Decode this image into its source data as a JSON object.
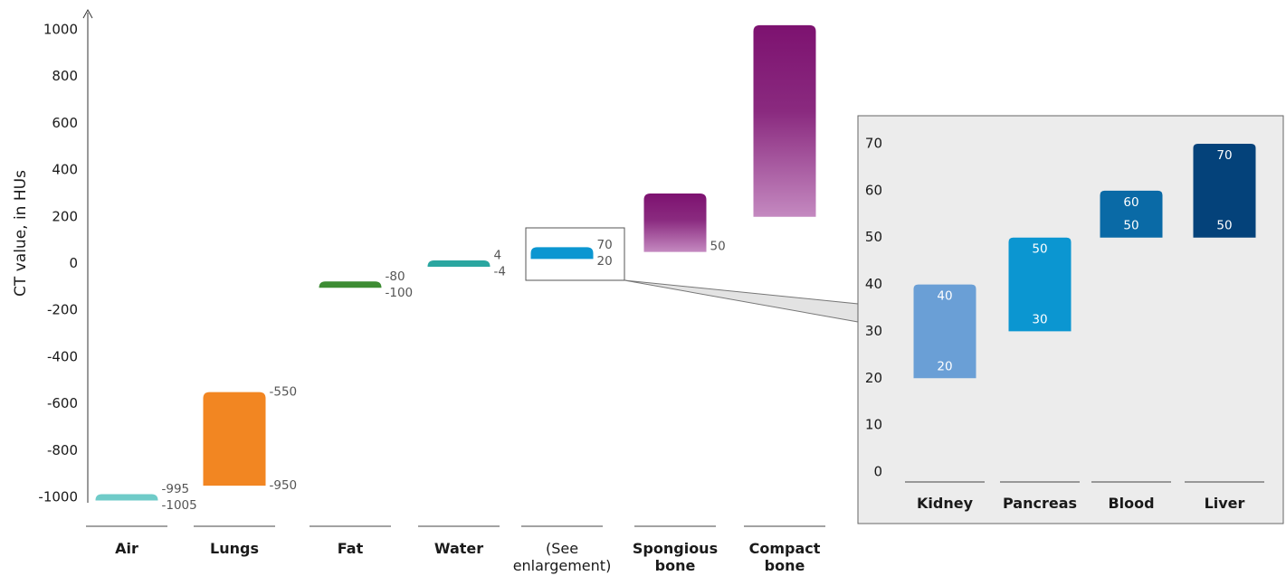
{
  "chart_data": [
    {
      "type": "bar",
      "title": "",
      "ylabel": "CT value, in HUs",
      "xlabel": "",
      "ylim": [
        -1000,
        1000
      ],
      "yticks": [
        1000,
        800,
        600,
        400,
        200,
        0,
        -200,
        -400,
        -600,
        -800,
        -1000
      ],
      "ytick_labels": [
        "1000",
        "800",
        "600",
        "400",
        "200",
        "0",
        "-200",
        "-400",
        "-600",
        "-800",
        "-1000"
      ],
      "grid": false,
      "bars": [
        {
          "category": [
            "Air"
          ],
          "low": -1005,
          "high": -995,
          "labels": [
            "-995",
            "-1005"
          ],
          "color": "#6fcbc8"
        },
        {
          "category": [
            "Lungs"
          ],
          "low": -950,
          "high": -550,
          "labels": [
            "-550",
            "-950"
          ],
          "color": "#f28622"
        },
        {
          "category": [
            "Fat"
          ],
          "low": -100,
          "high": -80,
          "labels": [
            "-80",
            "-100"
          ],
          "color": "#3d8c33"
        },
        {
          "category": [
            "Water"
          ],
          "low": -4,
          "high": 4,
          "labels": [
            "4",
            "-4"
          ],
          "color": "#2aa6a0"
        },
        {
          "category": [
            "(See",
            "enlargement)"
          ],
          "low": 20,
          "high": 70,
          "labels": [
            "70",
            "20"
          ],
          "color": "#0b96d1",
          "light": true
        },
        {
          "category": [
            "Spongious",
            "bone"
          ],
          "low": 50,
          "high": 300,
          "labels": [
            "50"
          ],
          "color_top": "#7d1270",
          "color_bottom": "#c489c0"
        },
        {
          "category": [
            "Compact",
            "bone"
          ],
          "low": 200,
          "high": 1020,
          "labels": [],
          "color_top": "#7d1270",
          "color_bottom": "#c489c0"
        }
      ]
    },
    {
      "type": "bar",
      "title": "",
      "ylim": [
        0,
        70
      ],
      "yticks": [
        70,
        60,
        50,
        40,
        30,
        20,
        10,
        0
      ],
      "ytick_labels": [
        "70",
        "60",
        "50",
        "40",
        "30",
        "20",
        "10",
        "0"
      ],
      "grid": false,
      "bars": [
        {
          "category": "Kidney",
          "low": 20,
          "high": 40,
          "labels": [
            "40",
            "20"
          ],
          "color": "#6a9fd6"
        },
        {
          "category": "Pancreas",
          "low": 30,
          "high": 50,
          "labels": [
            "50",
            "30"
          ],
          "color": "#0b96d1"
        },
        {
          "category": "Blood",
          "low": 50,
          "high": 60,
          "labels": [
            "60",
            "50"
          ],
          "color": "#0a6aa6"
        },
        {
          "category": "Liver",
          "low": 50,
          "high": 70,
          "labels": [
            "70",
            "50"
          ],
          "color": "#04427a"
        }
      ]
    }
  ]
}
